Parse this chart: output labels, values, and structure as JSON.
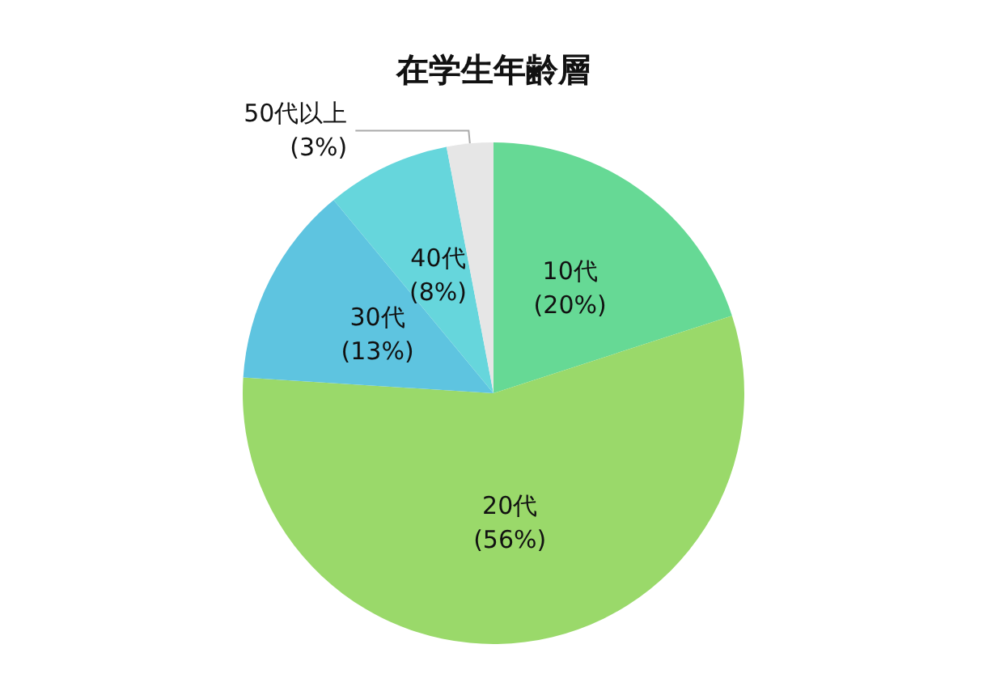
{
  "chart_data": {
    "type": "pie",
    "title": "在学生年齢層",
    "categories": [
      "10代",
      "20代",
      "30代",
      "40代",
      "50代以上"
    ],
    "values": [
      20,
      56,
      13,
      8,
      3
    ],
    "colors": [
      "#66d995",
      "#9ad96a",
      "#5ec4e0",
      "#66d6dc",
      "#e6e6e6"
    ],
    "value_labels": [
      "(20%)",
      "(56%)",
      "(13%)",
      "(8%)",
      "(3%)"
    ],
    "legend": false
  }
}
